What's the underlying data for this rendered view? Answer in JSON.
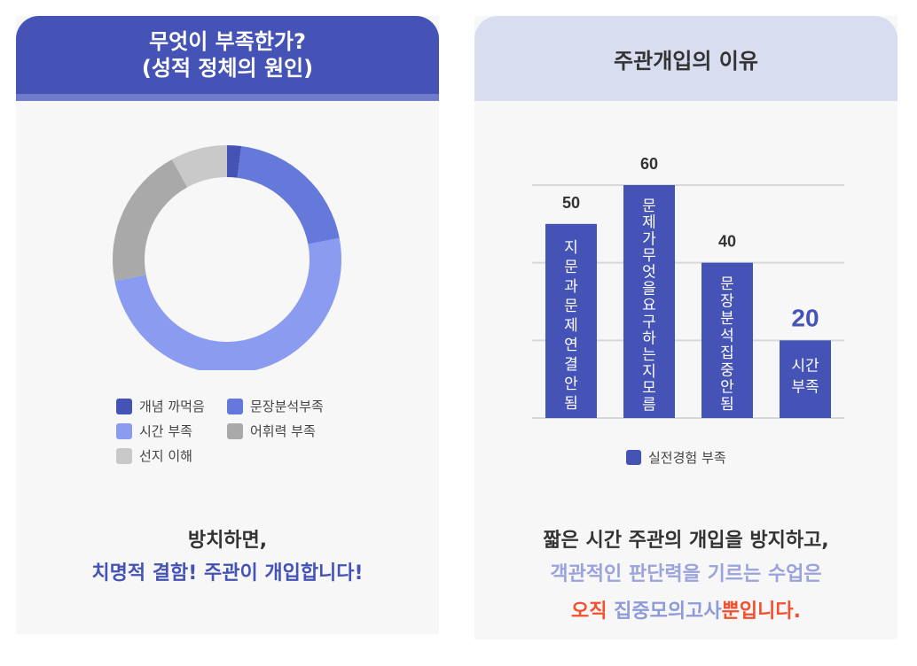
{
  "left": {
    "title_line1": "무엇이 부족한가?",
    "title_line2": "(성적 정체의 원인)",
    "message_line1": "방치하면,",
    "message_line2": "치명적 결함! 주관이 개입합니다!"
  },
  "right": {
    "title": "주관개입의 이유",
    "message_line1": "짧은 시간 주관의 개입을 방지하고,",
    "message_line2": "객관적인 판단력을 기르는 수업은",
    "message_line3_a": "오직 ",
    "message_line3_b": "집중모의고사",
    "message_line3_c": "뿐입니다."
  },
  "colors": {
    "dark_blue": "#4453b5",
    "mid_blue": "#6479d9",
    "light_blue": "#8a9bf0",
    "gray": "#a9a9a9",
    "light_gray": "#c9c9c9",
    "red": "#f4502f",
    "lavender": "#8f9ad8",
    "text": "#333333"
  },
  "chart_data": [
    {
      "type": "pie",
      "donut": true,
      "categories": [
        "개념 까먹음",
        "문장분석부족",
        "시간 부족",
        "어휘력 부족",
        "선지 이해"
      ],
      "values": [
        2,
        20,
        50,
        20,
        8
      ],
      "colors": [
        "#4453b5",
        "#6479d9",
        "#8a9bf0",
        "#a9a9a9",
        "#c9c9c9"
      ],
      "legend": "bottom"
    },
    {
      "type": "bar",
      "categories": [
        "지문과문제연결안됨",
        "문제가무엇을요구하는지모름",
        "문장분석집중안됨",
        "시간 부족"
      ],
      "category_display": [
        "지문과문제연결안됨",
        "문제가무엇을요구하는지모름",
        "문장분석집중안됨",
        "시간\n부족"
      ],
      "series": [
        {
          "name": "실전경험 부족",
          "values": [
            50,
            60,
            40,
            20
          ]
        }
      ],
      "data_labels": [
        "50",
        "60",
        "40",
        "20"
      ],
      "ylim": [
        0,
        60
      ],
      "yticks": [
        0,
        20,
        40,
        60
      ],
      "grid": true,
      "legend": "bottom",
      "color": "#4453b5"
    }
  ]
}
